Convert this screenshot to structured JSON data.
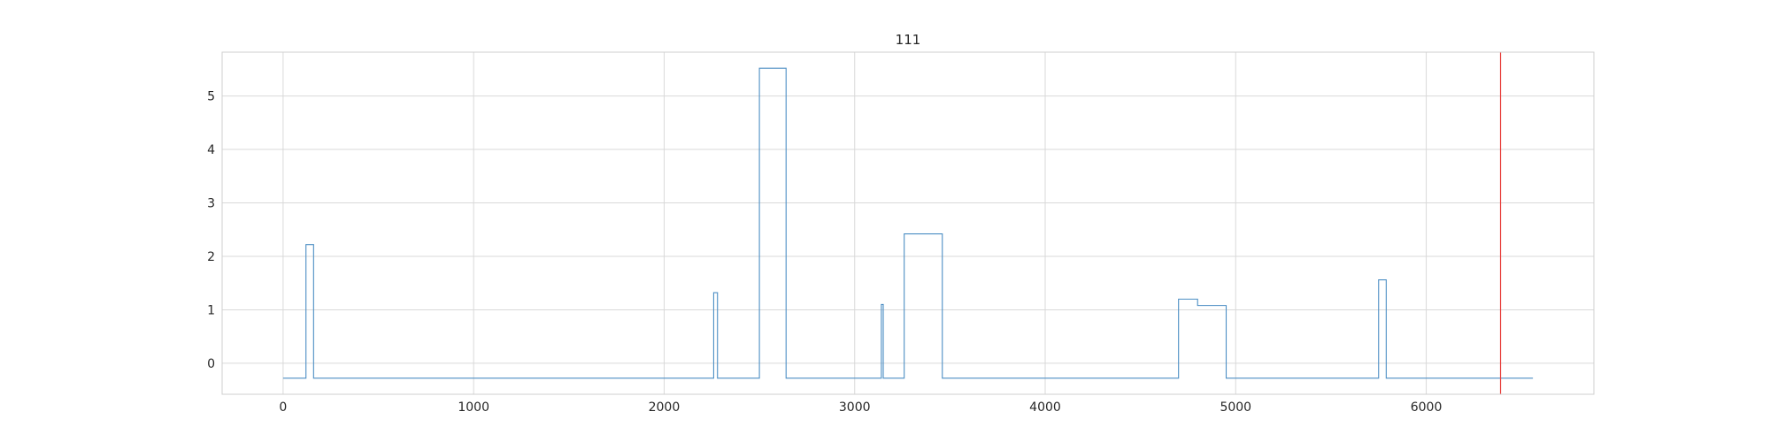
{
  "chart_data": {
    "type": "line",
    "title": "111",
    "xlabel": "",
    "ylabel": "",
    "xlim": [
      -320,
      6880
    ],
    "ylim": [
      -0.58,
      5.82
    ],
    "xticks": [
      0,
      1000,
      2000,
      3000,
      4000,
      5000,
      6000
    ],
    "yticks": [
      0,
      1,
      2,
      3,
      4,
      5
    ],
    "grid": true,
    "series": [
      {
        "drawstyle": "steps-post",
        "color": "#4c8ec4",
        "x": [
          0,
          120,
          160,
          2260,
          2280,
          2500,
          2640,
          3140,
          3150,
          3260,
          3460,
          4700,
          4800,
          4950,
          5750,
          5790,
          6560
        ],
        "y": [
          -0.28,
          2.22,
          -0.28,
          1.32,
          -0.28,
          5.52,
          -0.28,
          1.1,
          -0.28,
          2.42,
          -0.28,
          1.2,
          1.08,
          -0.28,
          1.56,
          -0.28,
          -0.28
        ]
      }
    ],
    "vlines": [
      {
        "x": 6390,
        "color": "#e8423f"
      }
    ]
  }
}
